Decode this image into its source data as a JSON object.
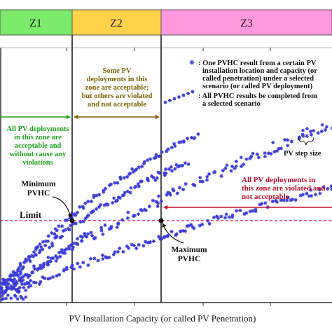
{
  "zones": [
    {
      "label": "Z1",
      "color": "#7CEB6A"
    },
    {
      "label": "Z2",
      "color": "#FFD24A"
    },
    {
      "label": "Z3",
      "color": "#FF99DD"
    }
  ],
  "legend": {
    "single_marker_text": [
      ": One PVHC result from a certain PV",
      "installation location and capacity (or",
      "called penetration) under a selected",
      "scenario (or called PV deployment)"
    ],
    "series_marker_text": [
      ": All PVHC results be completed from",
      "a selected scenario"
    ]
  },
  "annotations": {
    "z1_text": [
      "All PV deployments",
      "in this zone are",
      "acceptable and",
      "without cause any",
      "violations"
    ],
    "z2_text": [
      "Some PV",
      "deployments in this",
      "zone are acceptable;",
      "but others are violated",
      "and not acceptable"
    ],
    "z3_text": [
      "All PV deployments in",
      "this zone are violated and",
      "not acceptable"
    ],
    "minimum_pvhc": [
      "Minimum",
      "PVHC"
    ],
    "maximum_pvhc": [
      "Maximum",
      "PVHC"
    ],
    "limit": "Limit",
    "step_size": "PV step size"
  },
  "x_axis_label": "PV Installation Capacity (or called PV Penetration)",
  "colors": {
    "marker": "#3a3ad6",
    "limit_line": "#d4145a",
    "green": "#1fa31f",
    "brown": "#7a6200",
    "red": "#c0102e"
  }
}
